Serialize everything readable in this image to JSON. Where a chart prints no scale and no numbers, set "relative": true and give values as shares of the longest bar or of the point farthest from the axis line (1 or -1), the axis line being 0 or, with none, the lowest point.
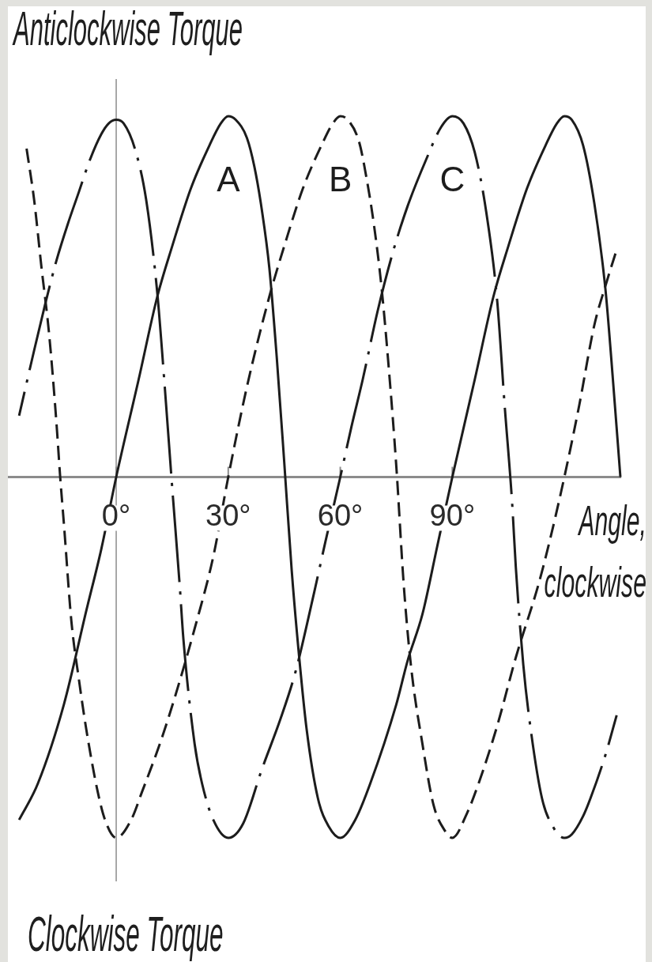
{
  "chart_data": {
    "type": "line",
    "relative": true,
    "xlabel": "Angle, clockwise",
    "annotations": [
      "Anticlockwise Torque",
      "Clockwise Torque"
    ],
    "xlim": [
      -29,
      135
    ],
    "xticks": [
      {
        "value": 0,
        "label": "0°"
      },
      {
        "value": 30,
        "label": "30°"
      },
      {
        "value": 60,
        "label": "60°"
      },
      {
        "value": 90,
        "label": "90°"
      }
    ],
    "tick_labels": "x",
    "ref_lines": [
      {
        "axis": "x",
        "value": 0,
        "color": "#8c8c8c"
      }
    ],
    "series": [
      {
        "name": "A",
        "color": "#1c1c1c",
        "line_style": "solid",
        "x": [
          -26,
          -21,
          -14,
          -8,
          -4,
          0,
          6,
          11,
          15,
          20,
          25,
          28,
          30,
          32,
          35,
          37,
          39,
          41,
          43,
          45,
          47,
          49,
          51,
          54,
          57,
          60,
          64,
          68,
          75,
          78,
          82,
          86,
          90,
          96,
          101,
          105,
          110,
          115,
          118,
          120,
          122,
          125,
          128,
          131,
          133,
          135
        ],
        "values": [
          -0.95,
          -0.85,
          -0.63,
          -0.37,
          -0.2,
          0,
          0.27,
          0.5,
          0.64,
          0.8,
          0.92,
          0.98,
          1.0,
          0.99,
          0.94,
          0.86,
          0.74,
          0.58,
          0.33,
          0.04,
          -0.26,
          -0.5,
          -0.7,
          -0.89,
          -0.97,
          -1.0,
          -0.95,
          -0.85,
          -0.63,
          -0.51,
          -0.38,
          -0.19,
          0,
          0.27,
          0.5,
          0.64,
          0.8,
          0.92,
          0.98,
          1.0,
          0.99,
          0.92,
          0.76,
          0.52,
          0.27,
          0
        ]
      },
      {
        "name": "B",
        "color": "#1c1c1c",
        "line_style": "dashed",
        "x": [
          -24,
          -22,
          -20,
          -18,
          -16,
          -15,
          -14,
          -12,
          -10,
          -8,
          -5,
          -3,
          0,
          4,
          7,
          12,
          16,
          21,
          26,
          30,
          35,
          41,
          45,
          50,
          55,
          58,
          60,
          62,
          65,
          67,
          69,
          71,
          73,
          75,
          77,
          79,
          82,
          85,
          88,
          90,
          94,
          97,
          102,
          107,
          113,
          116,
          120,
          124,
          128,
          131,
          134
        ],
        "values": [
          0.91,
          0.77,
          0.58,
          0.4,
          0.15,
          0,
          -0.13,
          -0.4,
          -0.56,
          -0.7,
          -0.87,
          -0.95,
          -1.0,
          -0.95,
          -0.87,
          -0.73,
          -0.6,
          -0.42,
          -0.22,
          0,
          0.25,
          0.5,
          0.64,
          0.8,
          0.92,
          0.98,
          1.0,
          0.99,
          0.93,
          0.83,
          0.7,
          0.53,
          0.3,
          0.03,
          -0.3,
          -0.53,
          -0.74,
          -0.91,
          -0.98,
          -1.0,
          -0.93,
          -0.85,
          -0.69,
          -0.5,
          -0.3,
          -0.18,
          0,
          0.2,
          0.42,
          0.53,
          0.63
        ]
      },
      {
        "name": "C",
        "color": "#1c1c1c",
        "line_style": "dashdot",
        "x": [
          -26,
          -22,
          -19,
          -16,
          -13,
          -10,
          -7,
          -4,
          -2,
          0,
          2,
          5,
          8,
          11,
          13,
          15,
          17,
          18,
          21,
          23,
          26,
          30,
          34,
          39,
          44,
          48,
          53,
          56,
          60,
          63,
          66,
          70,
          74,
          78,
          83,
          87,
          90,
          93,
          96,
          99,
          102,
          104,
          106,
          107,
          109,
          111,
          114,
          117,
          120,
          122,
          125,
          127,
          131,
          134
        ],
        "values": [
          0.17,
          0.35,
          0.48,
          0.6,
          0.7,
          0.79,
          0.88,
          0.95,
          0.98,
          0.99,
          0.98,
          0.91,
          0.77,
          0.51,
          0.25,
          -0.03,
          -0.3,
          -0.45,
          -0.74,
          -0.85,
          -0.95,
          -1.0,
          -0.96,
          -0.81,
          -0.67,
          -0.54,
          -0.32,
          -0.18,
          0,
          0.14,
          0.27,
          0.46,
          0.62,
          0.75,
          0.88,
          0.97,
          1.0,
          0.98,
          0.9,
          0.74,
          0.49,
          0.2,
          -0.07,
          -0.25,
          -0.52,
          -0.7,
          -0.89,
          -0.97,
          -1.0,
          -0.99,
          -0.94,
          -0.89,
          -0.77,
          -0.66
        ]
      }
    ]
  }
}
